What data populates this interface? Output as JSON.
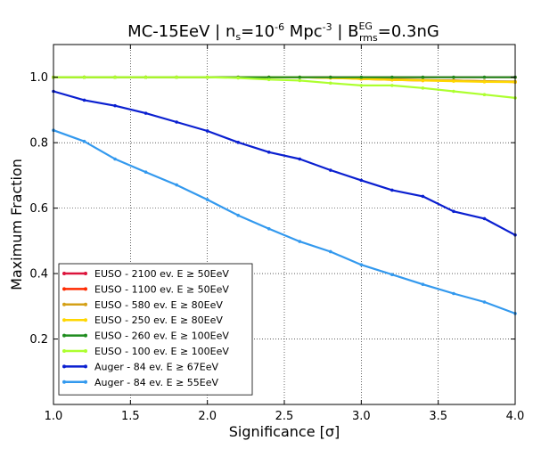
{
  "chart_data": {
    "type": "line",
    "title": {
      "prefix": "MC-15EeV | n",
      "sub1": "s",
      "mid1": "=10",
      "sup1": "-6",
      "mid2": " Mpc",
      "sup2": "-3",
      "mid3": "  | B",
      "sup3": "EG",
      "sub3": "rms",
      "suffix": "=0.3nG"
    },
    "xlabel": "Significance [σ]",
    "ylabel": "Maximum Fraction",
    "xlim": [
      1.0,
      4.0
    ],
    "ylim": [
      0.0,
      1.1
    ],
    "xticks": [
      "1.0",
      "1.5",
      "2.0",
      "2.5",
      "3.0",
      "3.5",
      "4.0"
    ],
    "yticks": [
      "0.2",
      "0.4",
      "0.6",
      "0.8",
      "1.0"
    ],
    "grid": true,
    "legend_position": "lower-left",
    "x": [
      1.0,
      1.2,
      1.4,
      1.6,
      1.8,
      2.0,
      2.2,
      2.4,
      2.6,
      2.8,
      3.0,
      3.2,
      3.4,
      3.6,
      3.8,
      4.0
    ],
    "series": [
      {
        "name": "EUSO - 2100 ev. E ≥ 50EeV",
        "color": "#dc143c",
        "values": [
          1.0,
          1.0,
          1.0,
          1.0,
          1.0,
          1.0,
          1.0,
          1.0,
          1.0,
          1.0,
          1.0,
          1.0,
          1.0,
          1.0,
          1.0,
          1.0
        ]
      },
      {
        "name": "EUSO - 1100 ev. E ≥ 50EeV",
        "color": "#ff2a00",
        "values": [
          1.0,
          1.0,
          1.0,
          1.0,
          1.0,
          1.0,
          1.0,
          1.0,
          1.0,
          1.0,
          0.995,
          0.992,
          0.99,
          0.99,
          0.988,
          0.985
        ]
      },
      {
        "name": "EUSO - 580 ev. E ≥ 80EeV",
        "color": "#d4a017",
        "values": [
          1.0,
          1.0,
          1.0,
          1.0,
          1.0,
          1.0,
          1.0,
          1.0,
          1.0,
          0.998,
          0.996,
          0.994,
          0.992,
          0.99,
          0.988,
          0.987
        ]
      },
      {
        "name": "EUSO - 250 ev. E ≥ 80EeV",
        "color": "#ffd700",
        "values": [
          1.0,
          1.0,
          1.0,
          1.0,
          1.0,
          1.0,
          1.0,
          1.0,
          1.0,
          0.998,
          0.995,
          0.992,
          0.99,
          0.988,
          0.986,
          0.985
        ]
      },
      {
        "name": "EUSO - 260 ev. E ≥ 100EeV",
        "color": "#1e8c1e",
        "values": [
          1.0,
          1.0,
          1.0,
          1.0,
          1.0,
          1.0,
          1.0,
          1.0,
          1.0,
          1.0,
          1.0,
          1.0,
          1.0,
          1.0,
          1.0,
          1.0
        ]
      },
      {
        "name": "EUSO - 100 ev. E ≥ 100EeV",
        "color": "#adff2f",
        "values": [
          1.0,
          1.0,
          1.0,
          1.0,
          1.0,
          1.0,
          0.998,
          0.993,
          0.99,
          0.982,
          0.975,
          0.975,
          0.967,
          0.957,
          0.947,
          0.937
        ]
      },
      {
        "name": "Auger - 84 ev. E ≥ 67EeV",
        "color": "#0a1fd0",
        "values": [
          0.957,
          0.93,
          0.913,
          0.89,
          0.863,
          0.836,
          0.801,
          0.771,
          0.75,
          0.716,
          0.685,
          0.655,
          0.636,
          0.59,
          0.568,
          0.518
        ]
      },
      {
        "name": "Auger - 84 ev. E ≥ 55EeV",
        "color": "#3399ee",
        "values": [
          0.838,
          0.804,
          0.75,
          0.71,
          0.671,
          0.626,
          0.578,
          0.537,
          0.498,
          0.467,
          0.427,
          0.397,
          0.367,
          0.339,
          0.313,
          0.278
        ]
      }
    ]
  }
}
